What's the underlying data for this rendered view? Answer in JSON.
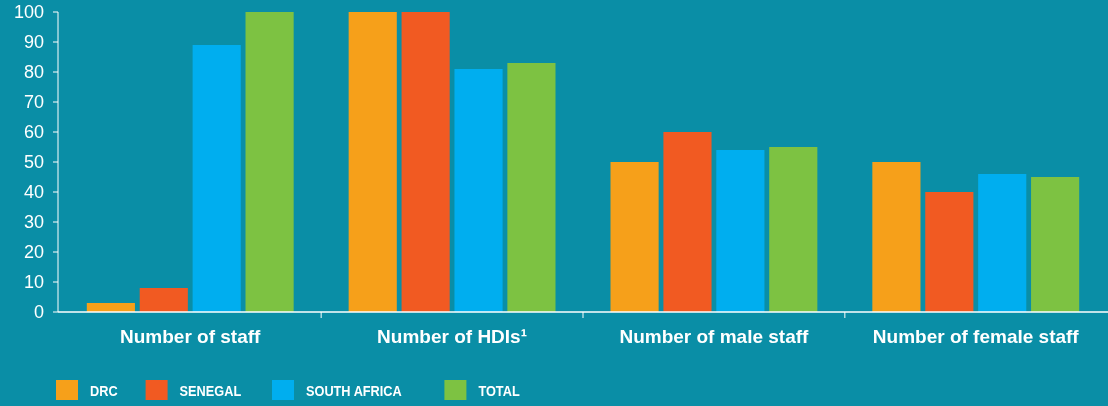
{
  "chart_data": {
    "type": "bar",
    "categories": [
      "Number of staff",
      "Number of HDIs¹",
      "Number of male staff",
      "Number of female staff"
    ],
    "series": [
      {
        "name": "DRC",
        "color": "#f6a01a",
        "values": [
          3,
          100,
          50,
          50
        ]
      },
      {
        "name": "SENEGAL",
        "color": "#f15a22",
        "values": [
          8,
          100,
          60,
          40
        ]
      },
      {
        "name": "SOUTH AFRICA",
        "color": "#00aeef",
        "values": [
          89,
          81,
          54,
          46
        ]
      },
      {
        "name": "TOTAL",
        "color": "#7dc242",
        "values": [
          100,
          83,
          55,
          45
        ]
      }
    ],
    "ylim": [
      0,
      100
    ],
    "yticks": [
      0,
      10,
      20,
      30,
      40,
      50,
      60,
      70,
      80,
      90,
      100
    ],
    "grid": false,
    "legend": "bottom left"
  }
}
